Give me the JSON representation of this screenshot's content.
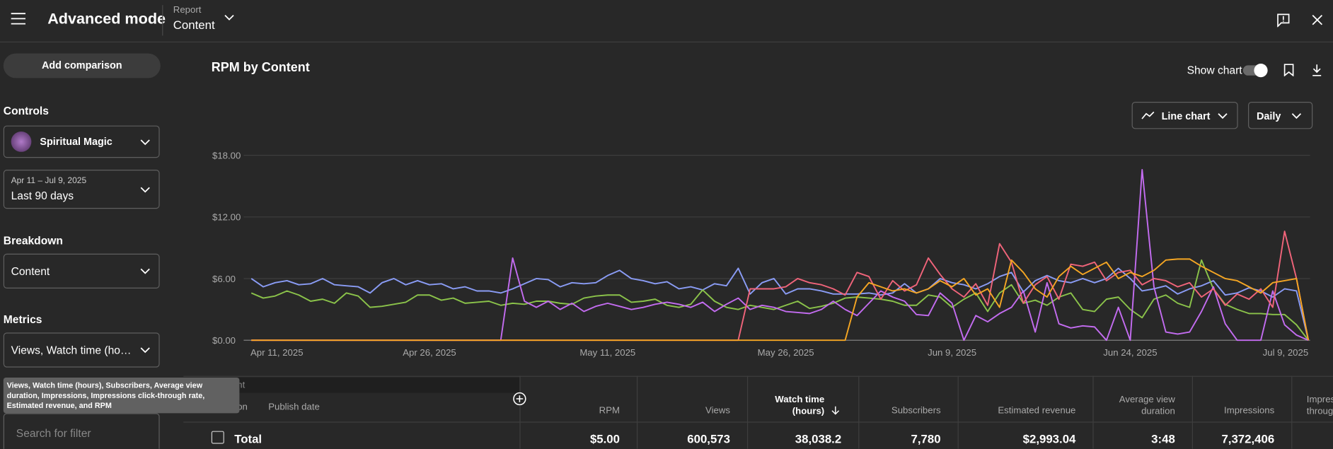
{
  "header": {
    "title": "Advanced mode",
    "report_label": "Report",
    "report_value": "Content"
  },
  "sidebar": {
    "add_comparison": "Add comparison",
    "controls_heading": "Controls",
    "channel": "Spiritual Magic",
    "date_range": "Apr 11 – Jul 9, 2025",
    "period": "Last 90 days",
    "breakdown_heading": "Breakdown",
    "breakdown": "Content",
    "metrics_heading": "Metrics",
    "metrics": "Views, Watch time (ho…",
    "metrics_tooltip": "Views, Watch time (hours), Subscribers, Average view duration, Impressions, Impressions click-through rate, Estimated revenue, and RPM",
    "search_placeholder": "Search for filter"
  },
  "toolbar": {
    "show_chart": "Show chart",
    "chart_type": "Line chart",
    "interval": "Daily"
  },
  "chart_data": {
    "type": "line",
    "title": "RPM by Content",
    "x": [
      "2025-04-11",
      "2025-04-12",
      "2025-04-13",
      "2025-04-14",
      "2025-04-15",
      "2025-04-16",
      "2025-04-17",
      "2025-04-18",
      "2025-04-19",
      "2025-04-20",
      "2025-04-21",
      "2025-04-22",
      "2025-04-23",
      "2025-04-24",
      "2025-04-25",
      "2025-04-26",
      "2025-04-27",
      "2025-04-28",
      "2025-04-29",
      "2025-04-30",
      "2025-05-01",
      "2025-05-02",
      "2025-05-03",
      "2025-05-04",
      "2025-05-05",
      "2025-05-06",
      "2025-05-07",
      "2025-05-08",
      "2025-05-09",
      "2025-05-10",
      "2025-05-11",
      "2025-05-12",
      "2025-05-13",
      "2025-05-14",
      "2025-05-15",
      "2025-05-16",
      "2025-05-17",
      "2025-05-18",
      "2025-05-19",
      "2025-05-20",
      "2025-05-21",
      "2025-05-22",
      "2025-05-23",
      "2025-05-24",
      "2025-05-25",
      "2025-05-26",
      "2025-05-27",
      "2025-05-28",
      "2025-05-29",
      "2025-05-30",
      "2025-05-31",
      "2025-06-01",
      "2025-06-02",
      "2025-06-03",
      "2025-06-04",
      "2025-06-05",
      "2025-06-06",
      "2025-06-07",
      "2025-06-08",
      "2025-06-09",
      "2025-06-10",
      "2025-06-11",
      "2025-06-12",
      "2025-06-13",
      "2025-06-14",
      "2025-06-15",
      "2025-06-16",
      "2025-06-17",
      "2025-06-18",
      "2025-06-19",
      "2025-06-20",
      "2025-06-21",
      "2025-06-22",
      "2025-06-23",
      "2025-06-24",
      "2025-06-25",
      "2025-06-26",
      "2025-06-27",
      "2025-06-28",
      "2025-06-29",
      "2025-06-30",
      "2025-07-01",
      "2025-07-02",
      "2025-07-03",
      "2025-07-04",
      "2025-07-05",
      "2025-07-06",
      "2025-07-07",
      "2025-07-08",
      "2025-07-09"
    ],
    "xlim": [
      "2025-04-11",
      "2025-07-09"
    ],
    "xticks": [
      {
        "value": "2025-04-11",
        "label": "Apr 11, 2025"
      },
      {
        "value": "2025-04-26",
        "label": "Apr 26, 2025"
      },
      {
        "value": "2025-05-11",
        "label": "May 11, 2025"
      },
      {
        "value": "2025-05-26",
        "label": "May 26, 2025"
      },
      {
        "value": "2025-06-09",
        "label": "Jun 9, 2025"
      },
      {
        "value": "2025-06-24",
        "label": "Jun 24, 2025"
      },
      {
        "value": "2025-07-09",
        "label": "Jul 9, 2025"
      }
    ],
    "ylim": [
      0,
      18
    ],
    "yticks": [
      {
        "value": 0,
        "label": "$0.00"
      },
      {
        "value": 6,
        "label": "$6.00"
      },
      {
        "value": 12,
        "label": "$12.00"
      },
      {
        "value": 18,
        "label": "$18.00"
      }
    ],
    "grid": true,
    "series": [
      {
        "color": "#8a9cf5",
        "values": [
          6.0,
          5.2,
          5.6,
          5.8,
          5.4,
          5.5,
          6.0,
          5.4,
          5.3,
          5.2,
          4.6,
          5.6,
          6.0,
          5.4,
          5.8,
          5.4,
          5.5,
          5.0,
          5.2,
          4.8,
          4.8,
          4.6,
          5.0,
          5.5,
          6.0,
          5.9,
          5.2,
          5.6,
          5.5,
          5.6,
          6.3,
          6.8,
          6.0,
          5.8,
          5.5,
          5.7,
          5.0,
          5.2,
          4.9,
          5.5,
          5.3,
          7.0,
          4.5,
          5.6,
          6.0,
          4.5,
          5.0,
          5.0,
          4.8,
          4.5,
          4.5,
          4.5,
          4.6,
          4.4,
          4.6,
          5.5,
          4.6,
          5.0,
          6.0,
          5.6,
          5.4,
          5.0,
          5.5,
          6.2,
          6.6,
          4.7,
          5.8,
          6.3,
          5.8,
          5.6,
          6.0,
          5.6,
          6.0,
          7.0,
          6.0,
          4.8,
          5.0,
          5.3,
          4.5,
          5.0,
          5.3,
          5.8,
          4.4,
          4.6,
          5.1,
          4.8,
          4.2,
          5.0,
          4.8,
          0.0
        ]
      },
      {
        "color": "#8bc34a",
        "values": [
          4.6,
          4.1,
          4.3,
          4.8,
          4.4,
          3.8,
          4.0,
          3.6,
          4.6,
          4.3,
          3.2,
          3.3,
          3.5,
          3.7,
          4.4,
          4.4,
          3.9,
          4.1,
          3.6,
          3.7,
          3.8,
          3.4,
          3.6,
          3.5,
          3.8,
          3.8,
          3.6,
          3.5,
          4.1,
          4.3,
          4.4,
          4.4,
          3.7,
          3.8,
          4.0,
          3.4,
          3.2,
          3.5,
          4.9,
          3.8,
          3.2,
          3.0,
          3.4,
          3.2,
          3.0,
          3.4,
          3.8,
          3.1,
          3.3,
          3.6,
          4.1,
          4.2,
          4.1,
          4.0,
          3.8,
          3.4,
          3.4,
          4.4,
          4.2,
          3.2,
          4.0,
          4.6,
          2.8,
          4.6,
          5.4,
          3.6,
          3.9,
          3.4,
          4.2,
          4.6,
          3.0,
          2.8,
          4.0,
          4.2,
          3.0,
          2.2,
          4.0,
          4.4,
          3.6,
          3.2,
          7.8,
          5.0,
          3.5,
          3.0,
          2.6,
          2.6,
          2.5,
          2.5,
          1.5,
          0.0
        ]
      },
      {
        "color": "#c36cf0",
        "values": [
          0,
          0,
          0,
          0,
          0,
          0,
          0,
          0,
          0,
          0,
          0,
          0,
          0,
          0,
          0,
          0,
          0,
          0,
          0,
          0,
          0,
          0,
          8.0,
          3.8,
          3.2,
          3.8,
          3.0,
          3.6,
          2.8,
          3.3,
          3.6,
          3.3,
          3.0,
          3.2,
          3.5,
          3.7,
          3.5,
          3.2,
          3.7,
          2.8,
          3.5,
          4.1,
          3.0,
          3.4,
          3.2,
          2.8,
          2.7,
          2.6,
          3.0,
          3.8,
          3.0,
          2.4,
          3.6,
          4.8,
          4.2,
          3.8,
          2.5,
          2.4,
          4.6,
          3.6,
          0.0,
          2.4,
          1.8,
          2.6,
          3.2,
          4.8,
          0.8,
          5.6,
          1.6,
          1.2,
          1.4,
          1.3,
          0.0,
          3.2,
          0.0,
          16.6,
          5.2,
          0.8,
          0.6,
          0.8,
          2.8,
          5.2,
          1.6,
          0.0,
          0.0,
          0.0,
          4.8,
          1.5,
          0.5,
          0.0
        ]
      },
      {
        "color": "#f0647a",
        "values": [
          0,
          0,
          0,
          0,
          0,
          0,
          0,
          0,
          0,
          0,
          0,
          0,
          0,
          0,
          0,
          0,
          0,
          0,
          0,
          0,
          0,
          0,
          0,
          0,
          0,
          0,
          0,
          0,
          0,
          0,
          0,
          0,
          0,
          0,
          0,
          0,
          0,
          0,
          0,
          0,
          0,
          0,
          5.0,
          5.0,
          5.0,
          5.2,
          6.0,
          5.6,
          5.4,
          5.0,
          4.4,
          6.6,
          6.2,
          4.0,
          5.8,
          4.8,
          5.4,
          8.0,
          6.4,
          5.0,
          4.2,
          5.5,
          3.4,
          9.4,
          7.6,
          3.6,
          5.4,
          6.2,
          4.0,
          7.4,
          7.2,
          7.6,
          5.8,
          6.6,
          6.8,
          5.4,
          6.0,
          5.8,
          5.2,
          5.6,
          4.2,
          5.0,
          3.4,
          4.5,
          4.0,
          5.0,
          3.2,
          10.6,
          6.0,
          0.0
        ]
      },
      {
        "color": "#f5a623",
        "values": [
          0,
          0,
          0,
          0,
          0,
          0,
          0,
          0,
          0,
          0,
          0,
          0,
          0,
          0,
          0,
          0,
          0,
          0,
          0,
          0,
          0,
          0,
          0,
          0,
          0,
          0,
          0,
          0,
          0,
          0,
          0,
          0,
          0,
          0,
          0,
          0,
          0,
          0,
          0,
          0,
          0,
          0,
          0,
          0,
          0,
          0,
          0,
          0,
          0,
          0,
          0,
          4.2,
          5.6,
          5.2,
          4.8,
          5.0,
          4.6,
          5.0,
          5.8,
          5.2,
          6.0,
          4.4,
          5.0,
          3.2,
          7.8,
          6.6,
          5.0,
          4.2,
          6.2,
          7.2,
          6.4,
          7.0,
          7.6,
          6.0,
          6.6,
          6.2,
          6.8,
          7.8,
          7.9,
          7.9,
          7.2,
          6.6,
          6.0,
          5.8,
          5.2,
          4.6,
          5.6,
          5.8,
          6.0,
          0.0
        ]
      }
    ]
  },
  "table": {
    "columns": [
      "Content",
      "Duration",
      "Publish date",
      "RPM",
      "Views",
      "Watch time (hours)",
      "Subscribers",
      "Estimated revenue",
      "Average view duration",
      "Impressions",
      "Impressions click-through rate"
    ],
    "total_row": [
      "Total",
      "$5.00",
      "600,573",
      "38,038.2",
      "7,780",
      "$2,993.04",
      "3:48",
      "7,372,406"
    ]
  }
}
